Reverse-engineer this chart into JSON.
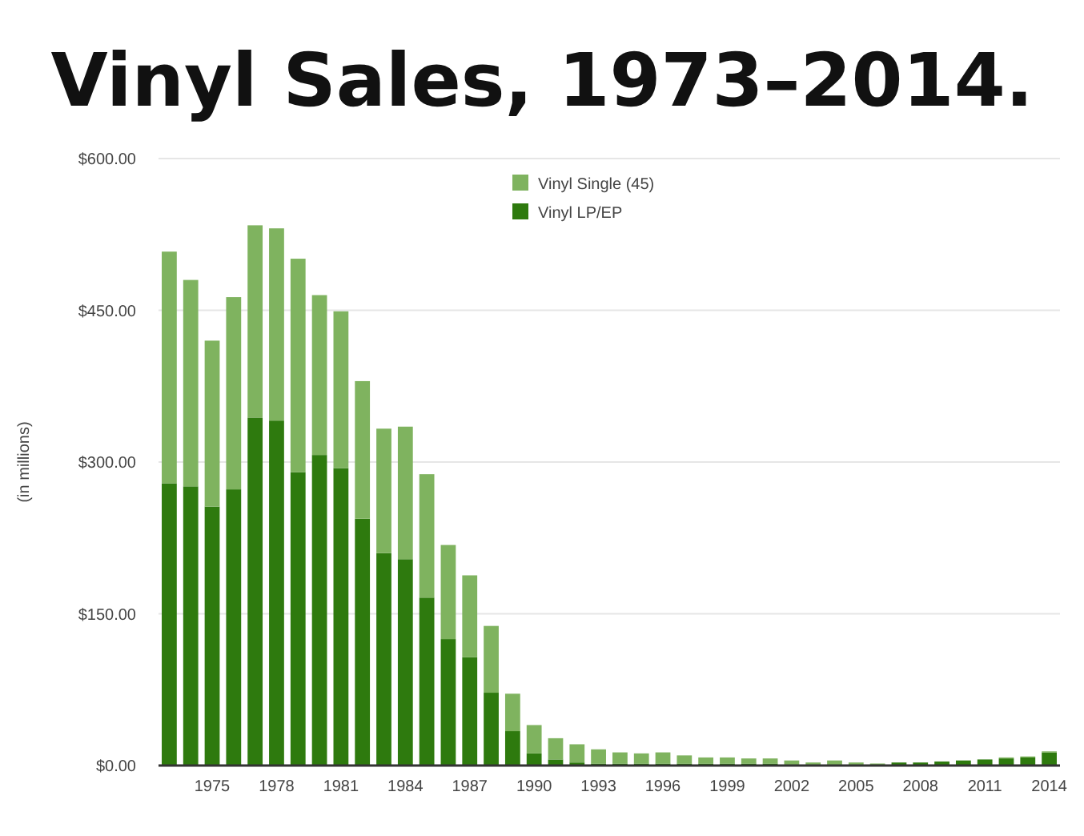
{
  "chart_data": {
    "type": "bar",
    "title": "Vinyl Sales, 1973–2014.",
    "ylabel": "(in millions)",
    "categories": [
      null,
      null,
      "1975",
      null,
      null,
      "1978",
      null,
      null,
      "1981",
      null,
      null,
      "1984",
      null,
      null,
      "1987",
      null,
      null,
      "1990",
      null,
      null,
      "1993",
      null,
      null,
      "1996",
      null,
      null,
      "1999",
      null,
      null,
      "2002",
      null,
      null,
      "2005",
      null,
      null,
      "2008",
      null,
      null,
      "2011",
      null,
      null,
      "2014"
    ],
    "stacked": true,
    "series": [
      {
        "name": "Vinyl LP/EP",
        "color": "#2e7a0e",
        "values": [
          279,
          276,
          256,
          273,
          344,
          341,
          290,
          307,
          294,
          244,
          210,
          204,
          166,
          125,
          107,
          72,
          34,
          12,
          6,
          3,
          2,
          2,
          2,
          2,
          2,
          2,
          2,
          2,
          2,
          null,
          null,
          0,
          0,
          0,
          3,
          3,
          4,
          5,
          6,
          7,
          8,
          13
        ]
      },
      {
        "name": "Vinyl Single (45)",
        "color": "#7fb35f",
        "values": [
          229,
          204,
          164,
          190,
          190,
          190,
          211,
          158,
          155,
          136,
          123,
          131,
          122,
          93,
          81,
          66,
          37,
          28,
          21,
          18,
          14,
          11,
          10,
          11,
          8,
          6,
          6,
          5,
          5,
          5,
          3,
          5,
          3,
          2,
          0,
          0,
          0,
          0,
          0,
          1,
          1,
          1
        ]
      }
    ],
    "ylim": [
      0,
      600
    ],
    "yticks": [
      {
        "value": 0,
        "label": "$0.00"
      },
      {
        "value": 150,
        "label": "$150.00"
      },
      {
        "value": 300,
        "label": "$300.00"
      },
      {
        "value": 450,
        "label": "$450.00"
      },
      {
        "value": 600,
        "label": "$600.00"
      }
    ],
    "grid": "y",
    "legend": "top"
  }
}
